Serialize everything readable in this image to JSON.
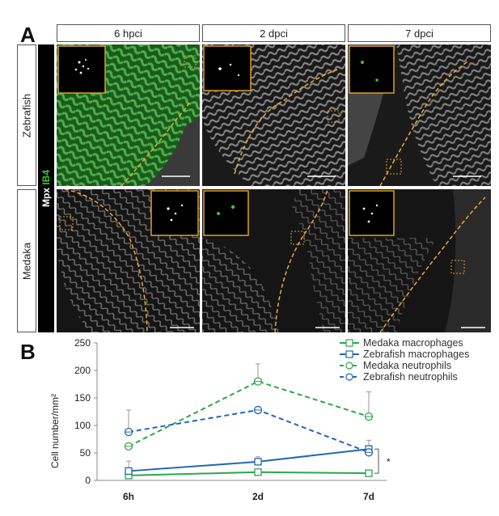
{
  "panel_a": {
    "letter": "A",
    "columns": [
      "6 hpci",
      "2 dpci",
      "7 dpci"
    ],
    "rows": [
      "Zebrafish",
      "Medaka"
    ],
    "stain": {
      "mpx": "Mpx",
      "ib4": "IB4"
    },
    "colors": {
      "ib4": "#39c639",
      "inset_border": "#e0a020",
      "injury_line": "#f0a830"
    }
  },
  "panel_b": {
    "letter": "B",
    "significance": "*"
  },
  "chart_data": {
    "type": "line",
    "categories": [
      "6h",
      "2d",
      "7d"
    ],
    "ylabel": "Cell number/mm²",
    "xlabel": "",
    "ylim": [
      0,
      250
    ],
    "yticks": [
      0,
      50,
      100,
      150,
      200,
      250
    ],
    "grid": false,
    "legend_position": "top-right",
    "series": [
      {
        "name": "Medaka macrophages",
        "values": [
          9,
          15,
          13
        ],
        "errors": [
          0,
          0,
          0
        ],
        "color": "#2aa84a",
        "dashed": false,
        "marker": "square"
      },
      {
        "name": "Zebrafish macrophages",
        "values": [
          17,
          34,
          57
        ],
        "errors": [
          18,
          9,
          16
        ],
        "color": "#2366b5",
        "dashed": false,
        "marker": "square"
      },
      {
        "name": "Medaka neutrophils",
        "values": [
          62,
          180,
          116
        ],
        "errors": [
          0,
          32,
          45
        ],
        "color": "#2aa84a",
        "dashed": true,
        "marker": "circle"
      },
      {
        "name": "Zebrafish neutrophils",
        "values": [
          88,
          128,
          51
        ],
        "errors": [
          40,
          0,
          0
        ],
        "color": "#2366b5",
        "dashed": true,
        "marker": "circle"
      }
    ]
  }
}
